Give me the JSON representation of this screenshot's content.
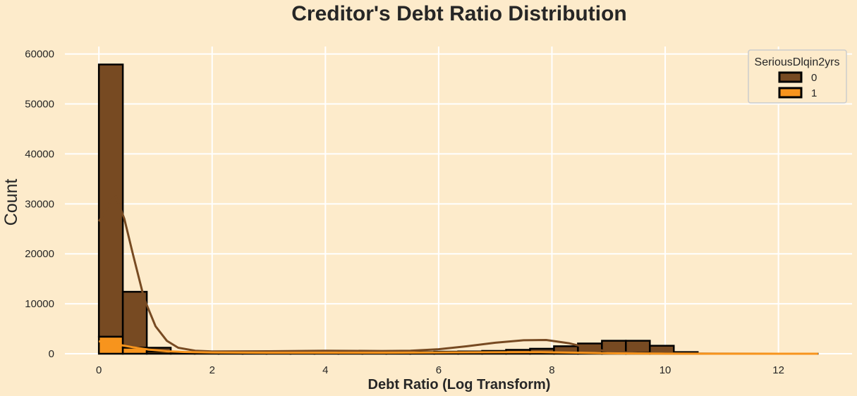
{
  "chart_data": {
    "type": "bar",
    "title": "Creditor's Debt Ratio Distribution",
    "xlabel": "Debt Ratio (Log Transform)",
    "ylabel": "Count",
    "xlim": [
      -0.6,
      13.3
    ],
    "ylim": [
      0,
      61500
    ],
    "xticks": [
      0,
      2,
      4,
      6,
      8,
      10,
      12
    ],
    "xtick_labels": [
      "0",
      "2",
      "4",
      "6",
      "8",
      "10",
      "12"
    ],
    "yticks": [
      0,
      10000,
      20000,
      30000,
      40000,
      50000,
      60000
    ],
    "ytick_labels": [
      "0",
      "10000",
      "20000",
      "30000",
      "40000",
      "50000",
      "60000"
    ],
    "grid": true,
    "stacked": true,
    "bin_width": 0.423,
    "bin_start": 0,
    "series": [
      {
        "name": "0",
        "color": "#774a22",
        "values": [
          54500,
          11200,
          800,
          150,
          100,
          100,
          100,
          100,
          150,
          150,
          200,
          200,
          250,
          300,
          350,
          400,
          500,
          700,
          900,
          1350,
          1900,
          2400,
          2400,
          1500,
          300,
          20,
          10,
          5,
          5,
          5
        ]
      },
      {
        "name": "1",
        "color": "#f7941d",
        "values": [
          3400,
          1200,
          400,
          120,
          80,
          60,
          50,
          40,
          40,
          40,
          40,
          40,
          50,
          50,
          60,
          60,
          70,
          80,
          100,
          150,
          150,
          200,
          200,
          100,
          30,
          5,
          2,
          1,
          1,
          1
        ]
      }
    ],
    "kde": [
      {
        "name": "0",
        "color": "#774a22",
        "points": [
          [
            0,
            26500
          ],
          [
            0.1,
            28200
          ],
          [
            0.2,
            30500
          ],
          [
            0.3,
            31500
          ],
          [
            0.45,
            27000
          ],
          [
            0.6,
            20000
          ],
          [
            0.8,
            11000
          ],
          [
            1.0,
            5500
          ],
          [
            1.2,
            2600
          ],
          [
            1.4,
            1200
          ],
          [
            1.7,
            600
          ],
          [
            2.0,
            450
          ],
          [
            3.0,
            500
          ],
          [
            4.0,
            600
          ],
          [
            5.0,
            550
          ],
          [
            5.5,
            600
          ],
          [
            6.0,
            900
          ],
          [
            6.5,
            1500
          ],
          [
            7.0,
            2200
          ],
          [
            7.5,
            2700
          ],
          [
            7.9,
            2750
          ],
          [
            8.3,
            2100
          ],
          [
            8.7,
            1000
          ],
          [
            9.0,
            450
          ],
          [
            9.5,
            150
          ],
          [
            10.0,
            50
          ],
          [
            11.0,
            10
          ],
          [
            12.0,
            5
          ],
          [
            12.7,
            5
          ]
        ]
      },
      {
        "name": "1",
        "color": "#f7941d",
        "points": [
          [
            0,
            2500
          ],
          [
            0.3,
            1900
          ],
          [
            0.6,
            1300
          ],
          [
            0.9,
            800
          ],
          [
            1.2,
            500
          ],
          [
            1.5,
            350
          ],
          [
            2.0,
            250
          ],
          [
            3.0,
            200
          ],
          [
            4.0,
            200
          ],
          [
            5.0,
            200
          ],
          [
            6.0,
            250
          ],
          [
            7.0,
            300
          ],
          [
            7.8,
            320
          ],
          [
            8.5,
            200
          ],
          [
            9.0,
            80
          ],
          [
            10.0,
            10
          ],
          [
            11.0,
            3
          ],
          [
            12.7,
            1
          ]
        ]
      }
    ],
    "legend": {
      "title": "SeriousDlqin2yrs",
      "position": "top-right",
      "entries": [
        {
          "label": "0",
          "color": "#774a22"
        },
        {
          "label": "1",
          "color": "#f7941d"
        }
      ]
    },
    "colors": {
      "background": "#fdebcb",
      "grid": "#ffffff",
      "edge": "#000000"
    }
  }
}
